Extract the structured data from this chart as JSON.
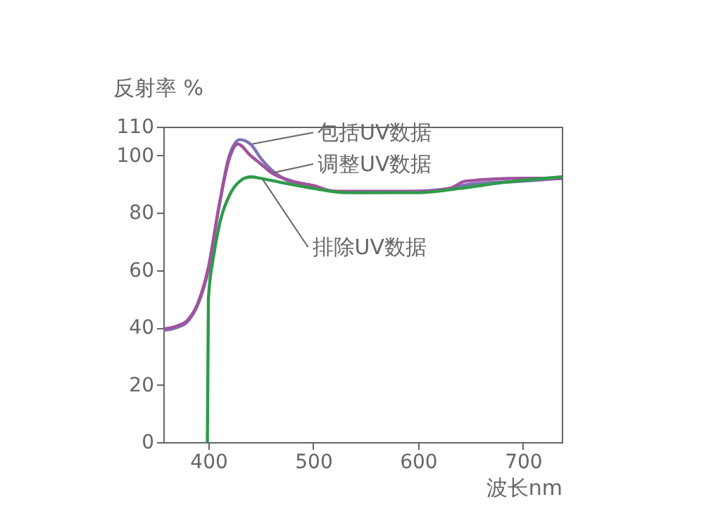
{
  "chart_data": {
    "type": "line",
    "xlabel": "波长nm",
    "ylabel": "反射率 %",
    "xlim": [
      357,
      737
    ],
    "ylim": [
      0,
      110
    ],
    "xticks": [
      400,
      500,
      600,
      700
    ],
    "yticks": [
      0,
      20,
      40,
      60,
      80,
      100,
      110
    ],
    "grid": false,
    "marker": "none",
    "line_style": "solid",
    "series": [
      {
        "name": "包括UV数据",
        "color": "#7f72b5",
        "x": [
          357,
          370,
          380,
          390,
          400,
          410,
          420,
          430,
          440,
          450,
          460,
          480,
          500,
          520,
          550,
          600,
          630,
          650,
          700,
          737
        ],
        "values": [
          39,
          40,
          42,
          48,
          60,
          82,
          100,
          105.5,
          104,
          99,
          95,
          90.5,
          89,
          87.5,
          87,
          87.5,
          88.5,
          90,
          91,
          92
        ]
      },
      {
        "name": "调整UV数据",
        "color": "#a0529e",
        "x": [
          357,
          370,
          380,
          390,
          400,
          410,
          420,
          428,
          440,
          450,
          460,
          480,
          500,
          520,
          550,
          600,
          630,
          645,
          700,
          737
        ],
        "values": [
          39.5,
          40.5,
          42.5,
          48.5,
          61,
          82,
          99,
          104,
          100,
          97,
          94,
          91,
          89.5,
          87.5,
          87.5,
          87.5,
          88.5,
          91,
          92,
          92
        ]
      },
      {
        "name": "排除UV数据",
        "color": "#2e9b4a",
        "x": [
          399,
          400,
          405,
          410,
          420,
          430,
          440,
          450,
          470,
          500,
          530,
          600,
          640,
          680,
          737
        ],
        "values": [
          0,
          50,
          65,
          75,
          86,
          91,
          92.5,
          92,
          90.5,
          88.5,
          87,
          87,
          88.5,
          90.5,
          92.5
        ]
      }
    ]
  }
}
